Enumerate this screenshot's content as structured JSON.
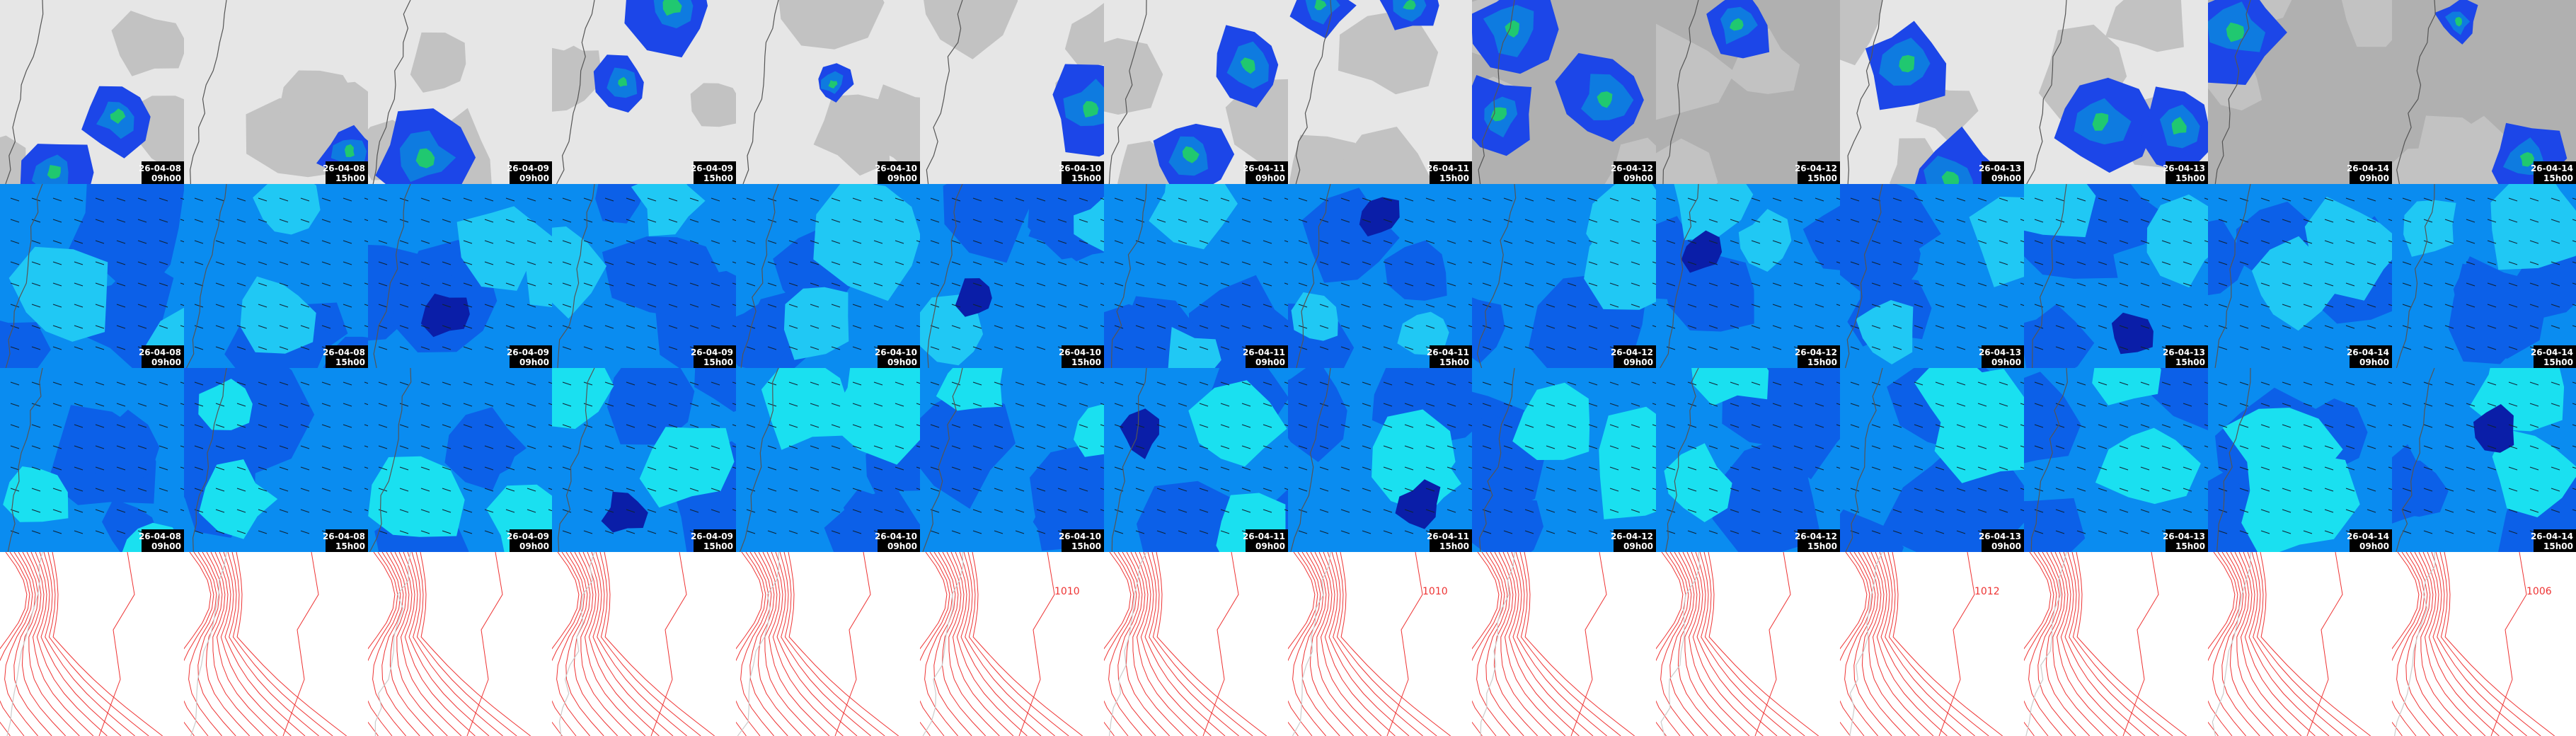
{
  "columns": [
    {
      "date": "26-04-08",
      "time": "09h00"
    },
    {
      "date": "26-04-08",
      "time": "15h00"
    },
    {
      "date": "26-04-09",
      "time": "09h00"
    },
    {
      "date": "26-04-09",
      "time": "15h00"
    },
    {
      "date": "26-04-10",
      "time": "09h00"
    },
    {
      "date": "26-04-10",
      "time": "15h00",
      "isobar": "1010"
    },
    {
      "date": "26-04-11",
      "time": "09h00"
    },
    {
      "date": "26-04-11",
      "time": "15h00",
      "isobar": "1010"
    },
    {
      "date": "26-04-12",
      "time": "09h00"
    },
    {
      "date": "26-04-12",
      "time": "15h00"
    },
    {
      "date": "26-04-13",
      "time": "09h00",
      "isobar": "1012"
    },
    {
      "date": "26-04-13",
      "time": "15h00"
    },
    {
      "date": "26-04-14",
      "time": "09h00"
    },
    {
      "date": "26-04-14",
      "time": "15h00",
      "isobar": "1006"
    }
  ]
}
